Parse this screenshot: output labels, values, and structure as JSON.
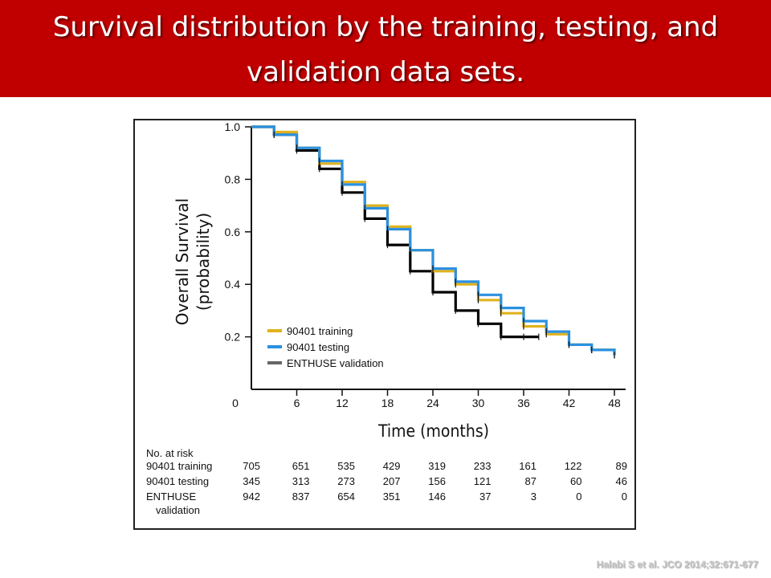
{
  "header": {
    "title_line1": "Survival distribution by the training, testing, and",
    "title_line2": "validation data sets."
  },
  "citation": "Halabi S et al. JCO 2014;32:671-677",
  "chart_data": {
    "type": "line",
    "title": "",
    "xlabel": "Time (months)",
    "ylabel": "Overall Survival",
    "ylabel2": "(probability)",
    "xlim": [
      0,
      48
    ],
    "ylim": [
      0,
      1.0
    ],
    "x_ticks": [
      0,
      6,
      12,
      18,
      24,
      30,
      36,
      42,
      48
    ],
    "x_tick_labels": [
      "0",
      "6",
      "12",
      "18",
      "24",
      "30",
      "36",
      "42",
      "48"
    ],
    "y_ticks": [
      0.2,
      0.4,
      0.6,
      0.8,
      1.0
    ],
    "y_tick_labels": [
      "0.2",
      "0.4",
      "0.6",
      "0.8",
      "1.0"
    ],
    "grid": false,
    "legend_position": "bottom-left",
    "series": [
      {
        "name": "90401 training",
        "color": "#e0b21e",
        "x": [
          0,
          3,
          6,
          9,
          12,
          15,
          18,
          21,
          24,
          27,
          30,
          33,
          36,
          39,
          42,
          45,
          48
        ],
        "y": [
          1.0,
          0.98,
          0.92,
          0.86,
          0.79,
          0.7,
          0.62,
          0.53,
          0.45,
          0.4,
          0.34,
          0.29,
          0.24,
          0.21,
          0.17,
          0.15,
          0.13
        ]
      },
      {
        "name": "90401 testing",
        "color": "#2b91e0",
        "x": [
          0,
          3,
          6,
          9,
          12,
          15,
          18,
          21,
          24,
          27,
          30,
          33,
          36,
          39,
          42,
          45,
          48
        ],
        "y": [
          1.0,
          0.97,
          0.92,
          0.87,
          0.78,
          0.69,
          0.61,
          0.53,
          0.46,
          0.41,
          0.36,
          0.31,
          0.26,
          0.22,
          0.17,
          0.15,
          0.13
        ]
      },
      {
        "name": "ENTHUSE validation",
        "color": "#000000",
        "legend_color": "#666666",
        "x": [
          0,
          3,
          6,
          9,
          12,
          15,
          18,
          21,
          24,
          27,
          30,
          33,
          36,
          38
        ],
        "y": [
          1.0,
          0.97,
          0.91,
          0.84,
          0.75,
          0.65,
          0.55,
          0.45,
          0.37,
          0.3,
          0.25,
          0.2,
          0.2,
          0.2
        ]
      }
    ],
    "risk_table": {
      "title": "No. at risk",
      "times": [
        0,
        6,
        12,
        18,
        24,
        30,
        36,
        42,
        48
      ],
      "rows": [
        {
          "label": "90401 training",
          "values": [
            "705",
            "651",
            "535",
            "429",
            "319",
            "233",
            "161",
            "122",
            "89"
          ]
        },
        {
          "label": "90401 testing",
          "values": [
            "345",
            "313",
            "273",
            "207",
            "156",
            "121",
            "87",
            "60",
            "46"
          ]
        },
        {
          "label": "ENTHUSE",
          "label2": "validation",
          "values": [
            "942",
            "837",
            "654",
            "351",
            "146",
            "37",
            "3",
            "0",
            "0"
          ]
        }
      ]
    }
  }
}
